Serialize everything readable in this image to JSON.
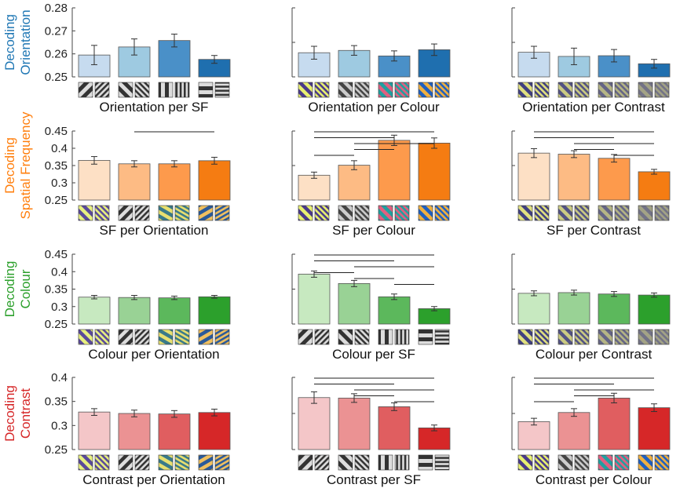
{
  "colors": {
    "orientation": [
      "#c6dbef",
      "#9ecae1",
      "#4a90c8",
      "#1f6faf"
    ],
    "spatial_frequency": [
      "#fde0c5",
      "#fdbb84",
      "#fd9a4c",
      "#f57c12"
    ],
    "colour": [
      "#c7e9c0",
      "#99d295",
      "#5cb85c",
      "#2ca02c"
    ],
    "contrast": [
      "#f4c6c8",
      "#eb9293",
      "#e05e60",
      "#d62728"
    ],
    "row_label": [
      "#1f77b4",
      "#ff7f0e",
      "#2ca02c",
      "#d62728"
    ]
  },
  "chart_data": [
    {
      "type": "bar",
      "row": 0,
      "col": 0,
      "row_label": [
        "Decoding",
        "Orientation"
      ],
      "xlabel": "Orientation per SF",
      "ylim": [
        0.25,
        0.28
      ],
      "yticks": [
        0.25,
        0.26,
        0.27,
        0.28
      ],
      "ytick_labels": [
        "0.25",
        "0.26",
        "0.27",
        "0.28"
      ],
      "values": [
        0.2595,
        0.263,
        0.2658,
        0.2576
      ],
      "errors": [
        0.0042,
        0.0035,
        0.0028,
        0.0017
      ],
      "significance": [],
      "color_key": "orientation",
      "thumb_kind": "sf"
    },
    {
      "type": "bar",
      "row": 0,
      "col": 1,
      "xlabel": "Orientation per Colour",
      "ylim": [
        0.25,
        0.28
      ],
      "yticks": [],
      "ytick_labels": [],
      "values": [
        0.2605,
        0.2615,
        0.2591,
        0.2618
      ],
      "errors": [
        0.0028,
        0.0021,
        0.0022,
        0.0025
      ],
      "significance": [],
      "color_key": "orientation",
      "thumb_kind": "colour"
    },
    {
      "type": "bar",
      "row": 0,
      "col": 2,
      "xlabel": "Orientation per Contrast",
      "ylim": [
        0.25,
        0.28
      ],
      "yticks": [],
      "ytick_labels": [],
      "values": [
        0.2607,
        0.2589,
        0.2592,
        0.2557
      ],
      "errors": [
        0.0026,
        0.0036,
        0.0027,
        0.0019
      ],
      "significance": [],
      "color_key": "orientation",
      "thumb_kind": "contrast"
    },
    {
      "type": "bar",
      "row": 1,
      "col": 0,
      "row_label": [
        "Decoding",
        "Spatial Frequency"
      ],
      "xlabel": "SF per Orientation",
      "ylim": [
        0.25,
        0.45
      ],
      "yticks": [
        0.25,
        0.3,
        0.35,
        0.4,
        0.45
      ],
      "ytick_labels": [
        "0.25",
        "0.3",
        "0.35",
        "0.4",
        "0.45"
      ],
      "values": [
        0.365,
        0.355,
        0.355,
        0.364
      ],
      "errors": [
        0.011,
        0.009,
        0.009,
        0.01
      ],
      "significance": [
        [
          1,
          3
        ]
      ],
      "color_key": "spatial_frequency",
      "thumb_kind": "orientation"
    },
    {
      "type": "bar",
      "row": 1,
      "col": 1,
      "xlabel": "SF per Colour",
      "ylim": [
        0.25,
        0.45
      ],
      "yticks": [],
      "ytick_labels": [],
      "values": [
        0.322,
        0.351,
        0.423,
        0.415
      ],
      "errors": [
        0.009,
        0.013,
        0.015,
        0.015
      ],
      "significance": [
        [
          0,
          3
        ],
        [
          0,
          2
        ],
        [
          1,
          3
        ],
        [
          1,
          2
        ],
        [
          0,
          1
        ]
      ],
      "color_key": "spatial_frequency",
      "thumb_kind": "colour"
    },
    {
      "type": "bar",
      "row": 1,
      "col": 2,
      "xlabel": "SF per Contrast",
      "ylim": [
        0.25,
        0.45
      ],
      "yticks": [],
      "ytick_labels": [],
      "values": [
        0.386,
        0.383,
        0.371,
        0.332
      ],
      "errors": [
        0.013,
        0.01,
        0.011,
        0.007
      ],
      "significance": [
        [
          0,
          3
        ],
        [
          0,
          2
        ],
        [
          1,
          3
        ],
        [
          1,
          2
        ],
        [
          2,
          3
        ]
      ],
      "color_key": "spatial_frequency",
      "thumb_kind": "contrast"
    },
    {
      "type": "bar",
      "row": 2,
      "col": 0,
      "row_label": [
        "Decoding",
        "Colour"
      ],
      "xlabel": "Colour per Orientation",
      "ylim": [
        0.25,
        0.45
      ],
      "yticks": [
        0.25,
        0.3,
        0.35,
        0.4,
        0.45
      ],
      "ytick_labels": [
        "0.25",
        "0.3",
        "0.35",
        "0.4",
        "0.45"
      ],
      "values": [
        0.327,
        0.326,
        0.325,
        0.328
      ],
      "errors": [
        0.005,
        0.006,
        0.005,
        0.004
      ],
      "significance": [],
      "color_key": "colour",
      "thumb_kind": "orientation"
    },
    {
      "type": "bar",
      "row": 2,
      "col": 1,
      "xlabel": "Colour per SF",
      "ylim": [
        0.25,
        0.45
      ],
      "yticks": [],
      "ytick_labels": [],
      "values": [
        0.393,
        0.366,
        0.328,
        0.294
      ],
      "errors": [
        0.009,
        0.009,
        0.008,
        0.006
      ],
      "significance": [
        [
          0,
          3
        ],
        [
          0,
          2
        ],
        [
          1,
          3
        ],
        [
          0,
          1
        ],
        [
          1,
          2
        ],
        [
          2,
          3
        ]
      ],
      "color_key": "colour",
      "thumb_kind": "sf"
    },
    {
      "type": "bar",
      "row": 2,
      "col": 2,
      "xlabel": "Colour per Contrast",
      "ylim": [
        0.25,
        0.45
      ],
      "yticks": [],
      "ytick_labels": [],
      "values": [
        0.338,
        0.34,
        0.336,
        0.333
      ],
      "errors": [
        0.007,
        0.007,
        0.007,
        0.006
      ],
      "significance": [],
      "color_key": "colour",
      "thumb_kind": "contrast"
    },
    {
      "type": "bar",
      "row": 3,
      "col": 0,
      "row_label": [
        "Decoding",
        "Contrast"
      ],
      "xlabel": "Contrast per Orientation",
      "ylim": [
        0.25,
        0.4
      ],
      "yticks": [
        0.25,
        0.3,
        0.35,
        0.4
      ],
      "ytick_labels": [
        "0.25",
        "0.3",
        "0.35",
        "0.4"
      ],
      "values": [
        0.328,
        0.325,
        0.324,
        0.327
      ],
      "errors": [
        0.007,
        0.007,
        0.007,
        0.007
      ],
      "significance": [],
      "color_key": "contrast",
      "thumb_kind": "orientation"
    },
    {
      "type": "bar",
      "row": 3,
      "col": 1,
      "xlabel": "Contrast per SF",
      "ylim": [
        0.25,
        0.4
      ],
      "yticks": [],
      "ytick_labels": [],
      "values": [
        0.358,
        0.357,
        0.339,
        0.295
      ],
      "errors": [
        0.012,
        0.009,
        0.008,
        0.006
      ],
      "significance": [
        [
          0,
          3
        ],
        [
          0,
          2
        ],
        [
          1,
          3
        ],
        [
          1,
          2
        ],
        [
          2,
          3
        ]
      ],
      "color_key": "contrast",
      "thumb_kind": "sf"
    },
    {
      "type": "bar",
      "row": 3,
      "col": 2,
      "xlabel": "Contrast per Colour",
      "ylim": [
        0.25,
        0.4
      ],
      "yticks": [],
      "ytick_labels": [],
      "values": [
        0.308,
        0.327,
        0.357,
        0.337
      ],
      "errors": [
        0.007,
        0.008,
        0.01,
        0.008
      ],
      "significance": [
        [
          0,
          3
        ],
        [
          0,
          2
        ],
        [
          1,
          3
        ],
        [
          1,
          2
        ],
        [
          0,
          1
        ]
      ],
      "color_key": "contrast",
      "thumb_kind": "colour"
    }
  ]
}
